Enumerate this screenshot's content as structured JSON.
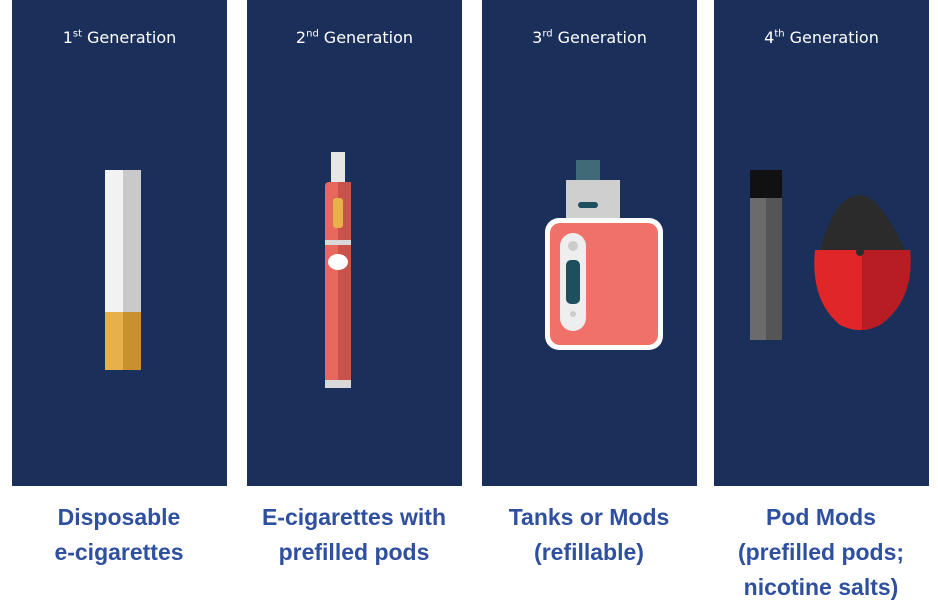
{
  "panels": [
    {
      "ordinal": "1",
      "suffix": "st",
      "label": "Generation",
      "caption": [
        "Disposable",
        "e-cigarettes"
      ]
    },
    {
      "ordinal": "2",
      "suffix": "nd",
      "label": "Generation",
      "caption": [
        "E-cigarettes with",
        "prefilled pods"
      ]
    },
    {
      "ordinal": "3",
      "suffix": "rd",
      "label": "Generation",
      "caption": [
        "Tanks or Mods",
        "(refillable)"
      ]
    },
    {
      "ordinal": "4",
      "suffix": "th",
      "label": "Generation",
      "caption": [
        "Pod Mods",
        "(prefilled pods;",
        "nicotine salts)"
      ]
    }
  ]
}
